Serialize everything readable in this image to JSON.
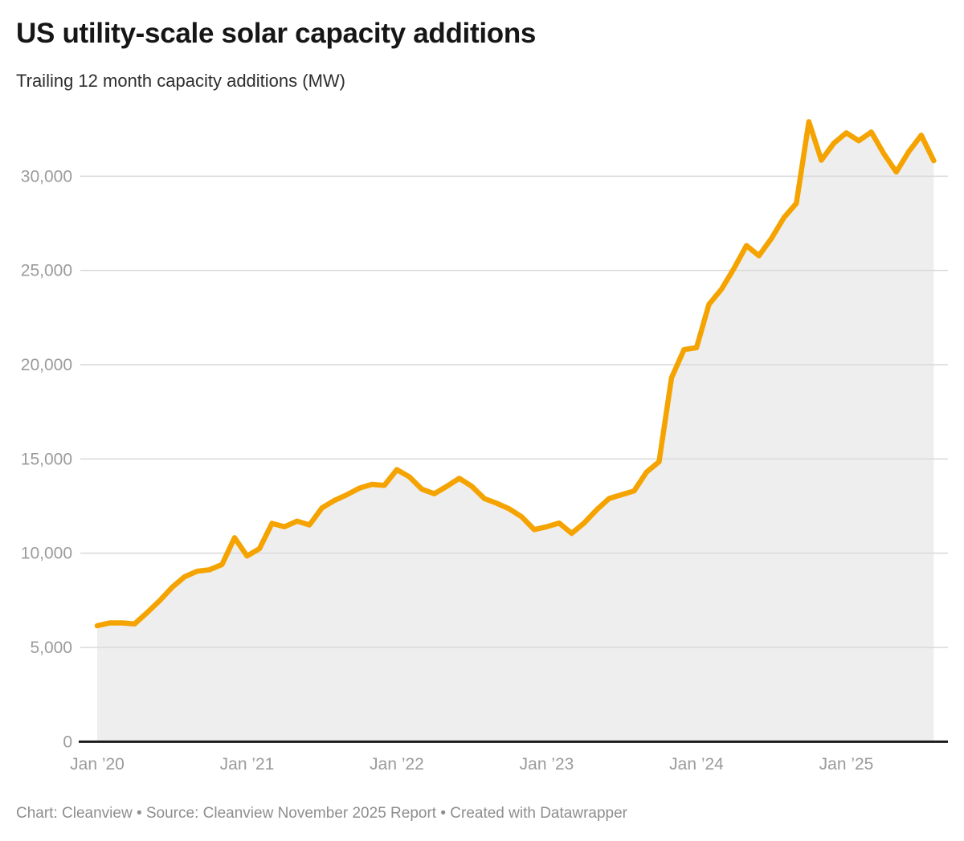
{
  "footer": {
    "text": "Chart: Cleanview • Source: Cleanview November 2025 Report • Created with Datawrapper"
  },
  "chart_data": {
    "type": "area",
    "title": "US utility-scale solar capacity additions",
    "subtitle": "Trailing 12 month capacity additions (MW)",
    "unit": "MW",
    "legend": "none",
    "grid": "horizontal",
    "ylim": [
      0,
      33500
    ],
    "y_ticks": [
      0,
      5000,
      10000,
      15000,
      20000,
      25000,
      30000
    ],
    "y_tick_labels": [
      "0",
      "5,000",
      "10,000",
      "15,000",
      "20,000",
      "25,000",
      "30,000"
    ],
    "x_tick_labels": [
      "Jan ’20",
      "Jan ’21",
      "Jan ’22",
      "Jan ’23",
      "Jan ’24",
      "Jan ’25"
    ],
    "x_tick_indices": [
      0,
      12,
      24,
      36,
      48,
      60
    ],
    "line_color": "#F5A300",
    "area_fill_color": "#EEEEEE",
    "gridline_color": "#D9D9D9",
    "baseline_color": "#1A1A1A",
    "axis_label_color": "#9B9B9B",
    "x": [
      "2020-01",
      "2020-02",
      "2020-03",
      "2020-04",
      "2020-05",
      "2020-06",
      "2020-07",
      "2020-08",
      "2020-09",
      "2020-10",
      "2020-11",
      "2020-12",
      "2021-01",
      "2021-02",
      "2021-03",
      "2021-04",
      "2021-05",
      "2021-06",
      "2021-07",
      "2021-08",
      "2021-09",
      "2021-10",
      "2021-11",
      "2021-12",
      "2022-01",
      "2022-02",
      "2022-03",
      "2022-04",
      "2022-05",
      "2022-06",
      "2022-07",
      "2022-08",
      "2022-09",
      "2022-10",
      "2022-11",
      "2022-12",
      "2023-01",
      "2023-02",
      "2023-03",
      "2023-04",
      "2023-05",
      "2023-06",
      "2023-07",
      "2023-08",
      "2023-09",
      "2023-10",
      "2023-11",
      "2023-12",
      "2024-01",
      "2024-02",
      "2024-03",
      "2024-04",
      "2024-05",
      "2024-06",
      "2024-07",
      "2024-08",
      "2024-09",
      "2024-10",
      "2024-11",
      "2024-12",
      "2025-01",
      "2025-02",
      "2025-03",
      "2025-04",
      "2025-05",
      "2025-06",
      "2025-07",
      "2025-08"
    ],
    "values": [
      6150,
      6300,
      6300,
      6250,
      6850,
      7480,
      8190,
      8750,
      9040,
      9120,
      9400,
      10820,
      9850,
      10240,
      11580,
      11400,
      11700,
      11500,
      12400,
      12800,
      13100,
      13450,
      13650,
      13600,
      14430,
      14050,
      13400,
      13150,
      13550,
      13970,
      13550,
      12900,
      12650,
      12350,
      11930,
      11250,
      11400,
      11600,
      11050,
      11600,
      12300,
      12900,
      13100,
      13300,
      14300,
      14850,
      19300,
      20800,
      20900,
      23200,
      24000,
      25100,
      26320,
      25780,
      26700,
      27800,
      28560,
      32890,
      30850,
      31750,
      32300,
      31880,
      32340,
      31200,
      30220,
      31300,
      32170,
      30820
    ]
  }
}
